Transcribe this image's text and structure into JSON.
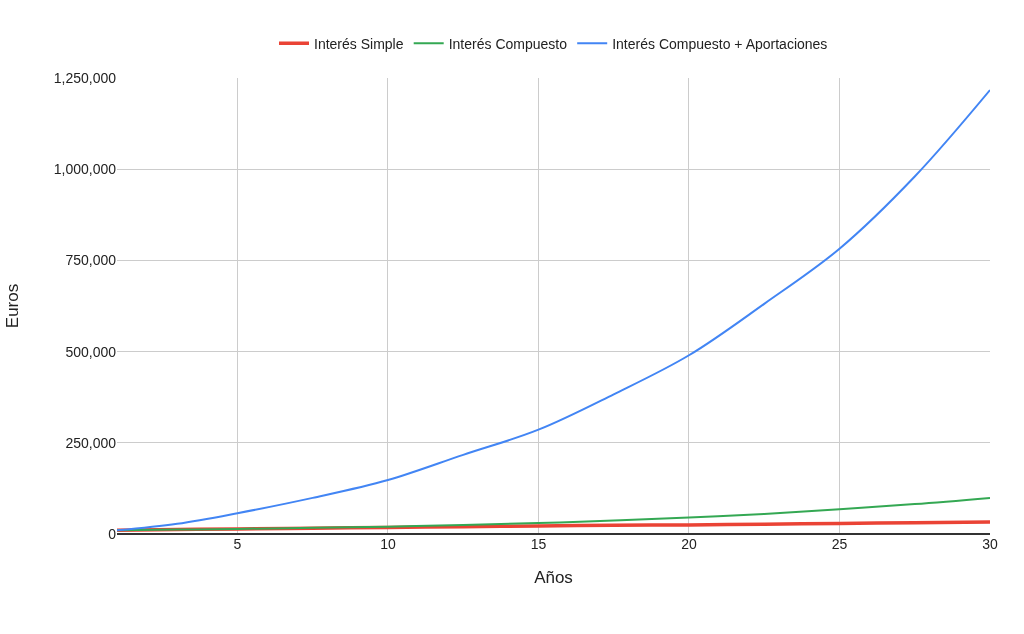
{
  "chart_data": {
    "type": "line",
    "xlabel": "Años",
    "ylabel": "Euros",
    "x": [
      1,
      3,
      5,
      7.5,
      10,
      12.5,
      15,
      17.5,
      20,
      22.5,
      25,
      27.5,
      30
    ],
    "series": [
      {
        "name": "Interés Simple",
        "color": "#ea4335",
        "values": [
          10000,
          12000,
          14000,
          16000,
          18000,
          20000,
          22000,
          24000,
          25000,
          27000,
          29000,
          31000,
          33000
        ]
      },
      {
        "name": "Interés Compuesto",
        "color": "#34a853",
        "values": [
          10000,
          12000,
          14000,
          17000,
          20000,
          25000,
          30000,
          37000,
          45000,
          55000,
          68000,
          82000,
          99000
        ]
      },
      {
        "name": "Interés Compuesto + Aportaciones",
        "color": "#4285f4",
        "values": [
          10000,
          28000,
          57000,
          99000,
          148000,
          217000,
          286000,
          383000,
          490000,
          631000,
          782000,
          980000,
          1217000
        ]
      }
    ],
    "xlim": [
      1,
      30
    ],
    "xticks": [
      5,
      10,
      15,
      20,
      25,
      30
    ],
    "ylim": [
      0,
      1250000
    ],
    "yticks": [
      0,
      {
        "value": 250000,
        "label": "250,000"
      },
      {
        "value": 500000,
        "label": "500,000"
      },
      {
        "value": 750000,
        "label": "750,000"
      },
      {
        "value": 1000000,
        "label": "1,000,000"
      },
      {
        "value": 1250000,
        "label": "1,250,000"
      }
    ],
    "grid": true,
    "legend": "top",
    "marker": "none",
    "line_style": "solid"
  }
}
